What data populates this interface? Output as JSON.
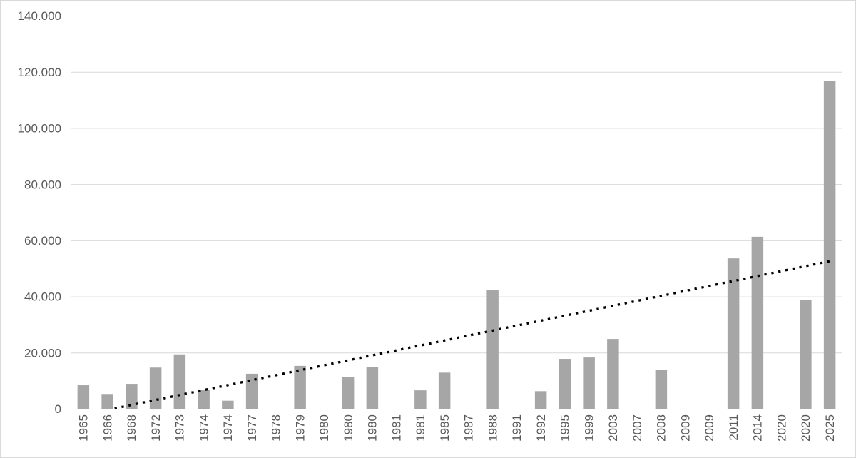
{
  "chart_data": {
    "type": "bar",
    "title": "",
    "xlabel": "",
    "ylabel": "",
    "categories": [
      "1965",
      "1966",
      "1968",
      "1972",
      "1973",
      "1974",
      "1974",
      "1977",
      "1978",
      "1979",
      "1980",
      "1980",
      "1980",
      "1981",
      "1981",
      "1985",
      "1987",
      "1988",
      "1991",
      "1992",
      "1995",
      "1999",
      "2003",
      "2007",
      "2008",
      "2009",
      "2009",
      "2011",
      "2014",
      "2020",
      "2020",
      "2025"
    ],
    "values": [
      8500,
      5400,
      9000,
      14800,
      19500,
      6800,
      3000,
      12600,
      null,
      15400,
      null,
      11500,
      15100,
      null,
      6700,
      13000,
      null,
      42300,
      null,
      6400,
      17900,
      18400,
      25000,
      null,
      14100,
      null,
      null,
      53700,
      61400,
      null,
      38900,
      117000
    ],
    "ylim": [
      0,
      140000
    ],
    "ytick_interval": 20000,
    "ytick_labels": [
      "0",
      "20.000",
      "40.000",
      "60.000",
      "80.000",
      "100.000",
      "120.000",
      "140.000"
    ],
    "grid": "horizontal",
    "legend": "none",
    "x_labels_rotated_degrees": 90,
    "trendline": {
      "type": "linear",
      "style": "dotted",
      "value_at_first_category": -2300,
      "value_at_last_category": 52700,
      "clipped_at_zero": true
    },
    "colors": {
      "bar": "#a6a6a6",
      "grid": "#d9d9d9",
      "axis_line": "#d9d9d9",
      "tick_label": "#595959",
      "trendline": "#000000",
      "background": "#ffffff",
      "border": "#d9d9d9"
    }
  }
}
